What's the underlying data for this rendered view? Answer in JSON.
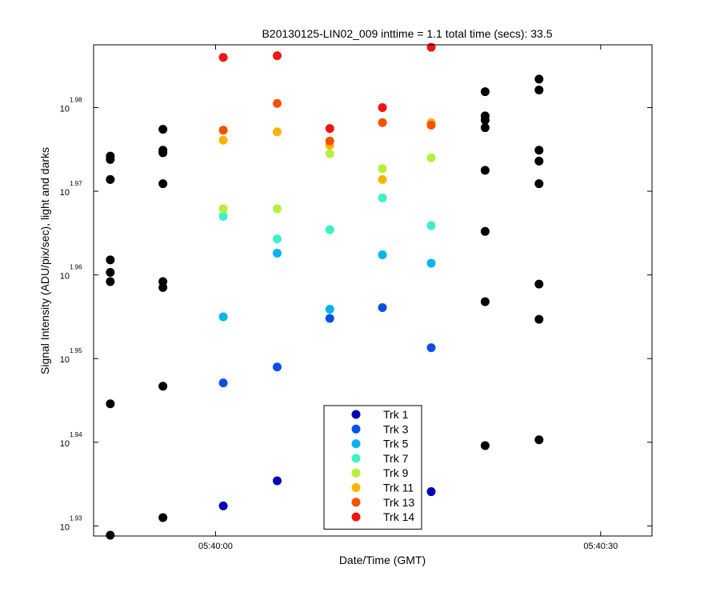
{
  "chart_data": {
    "type": "scatter",
    "title": "B20130125-LIN02_009 inttime = 1.1 total time (secs): 33.5",
    "xlabel": "Date/Time (GMT)",
    "ylabel": "Signal Intensity (ADU/pix/sec), light and darks",
    "x_unit": "seconds after 05:40:00 GMT",
    "xlim": [
      -9.5,
      34
    ],
    "ylim_log10": [
      1.9288,
      1.9875
    ],
    "y_scale": "log",
    "x_ticks": [
      {
        "value": 0,
        "label": "05:40:00"
      },
      {
        "value": 30,
        "label": "05:40:30"
      }
    ],
    "y_ticks": [
      {
        "log10": 1.93,
        "base": "10",
        "exp": "1.93"
      },
      {
        "log10": 1.94,
        "base": "10",
        "exp": "1.94"
      },
      {
        "log10": 1.95,
        "base": "10",
        "exp": "1.95"
      },
      {
        "log10": 1.96,
        "base": "10",
        "exp": "1.96"
      },
      {
        "log10": 1.97,
        "base": "10",
        "exp": "1.97"
      },
      {
        "log10": 1.98,
        "base": "10",
        "exp": "1.98"
      }
    ],
    "darks": {
      "name": "darks",
      "color": "#000000",
      "points": [
        {
          "x": -8.2,
          "y": 1.9289
        },
        {
          "x": -8.2,
          "y": 1.9446
        },
        {
          "x": -8.2,
          "y": 1.9592
        },
        {
          "x": -8.2,
          "y": 1.9603
        },
        {
          "x": -8.2,
          "y": 1.9618
        },
        {
          "x": -8.2,
          "y": 1.9714
        },
        {
          "x": -8.2,
          "y": 1.9738
        },
        {
          "x": -8.2,
          "y": 1.9742
        },
        {
          "x": -4.1,
          "y": 1.931
        },
        {
          "x": -4.1,
          "y": 1.9467
        },
        {
          "x": -4.1,
          "y": 1.9585
        },
        {
          "x": -4.1,
          "y": 1.9592
        },
        {
          "x": -4.1,
          "y": 1.9709
        },
        {
          "x": -4.1,
          "y": 1.9746
        },
        {
          "x": -4.1,
          "y": 1.9749
        },
        {
          "x": -4.1,
          "y": 1.9774
        },
        {
          "x": 21.0,
          "y": 1.9396
        },
        {
          "x": 21.0,
          "y": 1.9568
        },
        {
          "x": 21.0,
          "y": 1.9652
        },
        {
          "x": 21.0,
          "y": 1.9725
        },
        {
          "x": 21.0,
          "y": 1.9776
        },
        {
          "x": 21.0,
          "y": 1.9785
        },
        {
          "x": 21.0,
          "y": 1.979
        },
        {
          "x": 21.0,
          "y": 1.9819
        },
        {
          "x": 25.2,
          "y": 1.9403
        },
        {
          "x": 25.2,
          "y": 1.9547
        },
        {
          "x": 25.2,
          "y": 1.9589
        },
        {
          "x": 25.2,
          "y": 1.9709
        },
        {
          "x": 25.2,
          "y": 1.9736
        },
        {
          "x": 25.2,
          "y": 1.9749
        },
        {
          "x": 25.2,
          "y": 1.9821
        },
        {
          "x": 25.2,
          "y": 1.9834
        }
      ]
    },
    "series": [
      {
        "name": "Trk 1",
        "color": "#0000b4",
        "points": [
          {
            "x": 0.6,
            "y": 1.9324
          },
          {
            "x": 4.8,
            "y": 1.9354
          },
          {
            "x": 16.8,
            "y": 1.9341
          }
        ]
      },
      {
        "name": "Trk 3",
        "color": "#0a50e6",
        "points": [
          {
            "x": 0.6,
            "y": 1.9471
          },
          {
            "x": 4.8,
            "y": 1.949
          },
          {
            "x": 8.9,
            "y": 1.9548
          },
          {
            "x": 13.0,
            "y": 1.9561
          },
          {
            "x": 16.8,
            "y": 1.9513
          }
        ]
      },
      {
        "name": "Trk 5",
        "color": "#00b4f0",
        "points": [
          {
            "x": 0.6,
            "y": 1.955
          },
          {
            "x": 4.8,
            "y": 1.9626
          },
          {
            "x": 8.9,
            "y": 1.9559
          },
          {
            "x": 13.0,
            "y": 1.9624
          },
          {
            "x": 16.8,
            "y": 1.9614
          }
        ]
      },
      {
        "name": "Trk 7",
        "color": "#3cf0c8",
        "points": [
          {
            "x": 0.6,
            "y": 1.967
          },
          {
            "x": 4.8,
            "y": 1.9643
          },
          {
            "x": 8.9,
            "y": 1.9654
          },
          {
            "x": 13.0,
            "y": 1.9692
          },
          {
            "x": 16.8,
            "y": 1.9659
          }
        ]
      },
      {
        "name": "Trk 9",
        "color": "#b4f03c",
        "points": [
          {
            "x": 0.6,
            "y": 1.9679
          },
          {
            "x": 4.8,
            "y": 1.9679
          },
          {
            "x": 8.9,
            "y": 1.9745
          },
          {
            "x": 13.0,
            "y": 1.9727
          },
          {
            "x": 16.8,
            "y": 1.974
          }
        ]
      },
      {
        "name": "Trk 11",
        "color": "#fab400",
        "points": [
          {
            "x": 0.6,
            "y": 1.9761
          },
          {
            "x": 4.8,
            "y": 1.9771
          },
          {
            "x": 8.9,
            "y": 1.9755
          },
          {
            "x": 13.0,
            "y": 1.9714
          },
          {
            "x": 16.8,
            "y": 1.9782
          }
        ]
      },
      {
        "name": "Trk 13",
        "color": "#f55000",
        "points": [
          {
            "x": 0.6,
            "y": 1.9773
          },
          {
            "x": 4.8,
            "y": 1.9805
          },
          {
            "x": 8.9,
            "y": 1.976
          },
          {
            "x": 13.0,
            "y": 1.9782
          },
          {
            "x": 16.8,
            "y": 1.9779
          }
        ]
      },
      {
        "name": "Trk 14",
        "color": "#f01414",
        "points": [
          {
            "x": 0.6,
            "y": 1.986
          },
          {
            "x": 4.8,
            "y": 1.9862
          },
          {
            "x": 8.9,
            "y": 1.9775
          },
          {
            "x": 13.0,
            "y": 1.98
          },
          {
            "x": 16.8,
            "y": 1.9872
          }
        ]
      }
    ],
    "legend": {
      "placement": "bottom-center"
    }
  }
}
